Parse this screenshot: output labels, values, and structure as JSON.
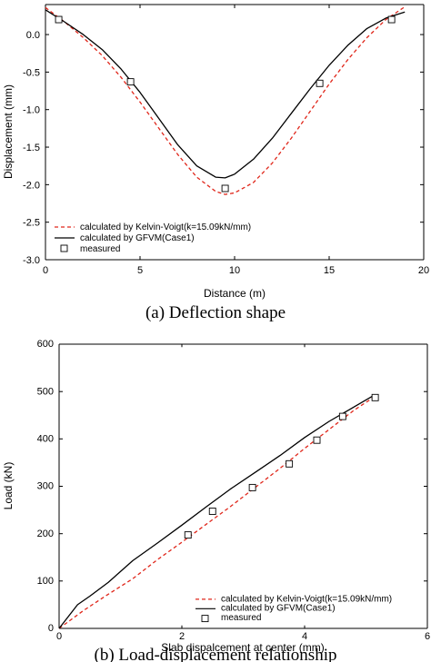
{
  "colors": {
    "kelvin_voigt": "#e0261a",
    "gfvm": "#000000",
    "measured": "#000000"
  },
  "chart_data": [
    {
      "type": "line",
      "caption": "(a)  Deflection shape",
      "xlabel": "Distance (m)",
      "ylabel": "Displacement (mm)",
      "xlim": [
        0,
        20
      ],
      "ylim": [
        -3.0,
        0.4
      ],
      "x_ticks": [
        "0",
        "5",
        "10",
        "15",
        "20"
      ],
      "y_ticks": [
        "0.0",
        "-0.5",
        "-1.0",
        "-1.5",
        "-2.0",
        "-2.5",
        "-3.0"
      ],
      "legend_position": "bottom-left",
      "series": [
        {
          "name": "calculated by Kelvin-Voigt(k=15.09kN/mm)",
          "style": "dashed",
          "x": [
            0.0,
            1.0,
            2.0,
            3.0,
            4.0,
            5.0,
            6.0,
            7.0,
            8.0,
            9.0,
            9.5,
            10.0,
            11.0,
            12.0,
            13.0,
            14.0,
            15.0,
            16.0,
            17.0,
            18.0,
            19.0
          ],
          "y": [
            0.36,
            0.17,
            -0.04,
            -0.28,
            -0.57,
            -0.9,
            -1.25,
            -1.6,
            -1.9,
            -2.09,
            -2.13,
            -2.11,
            -1.97,
            -1.71,
            -1.38,
            -1.02,
            -0.66,
            -0.33,
            -0.04,
            0.2,
            0.37
          ]
        },
        {
          "name": "calculated by GFVM(Case1)",
          "style": "solid",
          "x": [
            0.0,
            1.0,
            2.0,
            3.0,
            4.0,
            5.0,
            6.0,
            7.0,
            8.0,
            9.0,
            9.5,
            10.0,
            11.0,
            12.0,
            13.0,
            14.0,
            15.0,
            16.0,
            17.0,
            18.0,
            19.0
          ],
          "y": [
            0.33,
            0.17,
            0.0,
            -0.2,
            -0.46,
            -0.77,
            -1.12,
            -1.47,
            -1.75,
            -1.9,
            -1.91,
            -1.86,
            -1.66,
            -1.38,
            -1.05,
            -0.72,
            -0.41,
            -0.14,
            0.08,
            0.22,
            0.3
          ]
        },
        {
          "name": "measured",
          "style": "marker",
          "x": [
            0.7,
            4.5,
            9.5,
            14.5,
            18.3
          ],
          "y": [
            0.2,
            -0.63,
            -2.05,
            -0.65,
            0.2
          ]
        }
      ]
    },
    {
      "type": "line",
      "caption": "(b)  Load-displacement relationship",
      "xlabel": "Slab dispalcement at center (mm)",
      "ylabel": "Load (kN)",
      "xlim": [
        0,
        6
      ],
      "ylim": [
        0,
        600
      ],
      "x_ticks": [
        "0",
        "2",
        "4",
        "6"
      ],
      "y_ticks": [
        "0",
        "100",
        "200",
        "300",
        "400",
        "500",
        "600"
      ],
      "legend_position": "bottom-right",
      "series": [
        {
          "name": "calculated by Kelvin-Voigt(k=15.09kN/mm)",
          "style": "dashed",
          "x": [
            0.0,
            0.4,
            0.8,
            1.2,
            1.6,
            2.0,
            2.4,
            2.8,
            3.2,
            3.6,
            4.0,
            4.4,
            4.8,
            5.15
          ],
          "y": [
            0,
            38,
            72,
            105,
            145,
            182,
            220,
            258,
            298,
            338,
            380,
            420,
            460,
            490
          ]
        },
        {
          "name": "calculated by GFVM(Case1)",
          "style": "solid",
          "x": [
            0.0,
            0.15,
            0.3,
            0.5,
            0.8,
            1.2,
            1.6,
            2.0,
            2.4,
            2.8,
            3.2,
            3.6,
            4.0,
            4.4,
            4.8,
            5.1
          ],
          "y": [
            0,
            25,
            50,
            68,
            97,
            143,
            180,
            218,
            257,
            295,
            330,
            365,
            403,
            437,
            467,
            490
          ]
        },
        {
          "name": "measured",
          "style": "marker",
          "x": [
            2.1,
            2.5,
            3.15,
            3.75,
            4.2,
            4.62,
            5.15
          ],
          "y": [
            200,
            250,
            300,
            350,
            400,
            450,
            490
          ]
        }
      ]
    }
  ]
}
